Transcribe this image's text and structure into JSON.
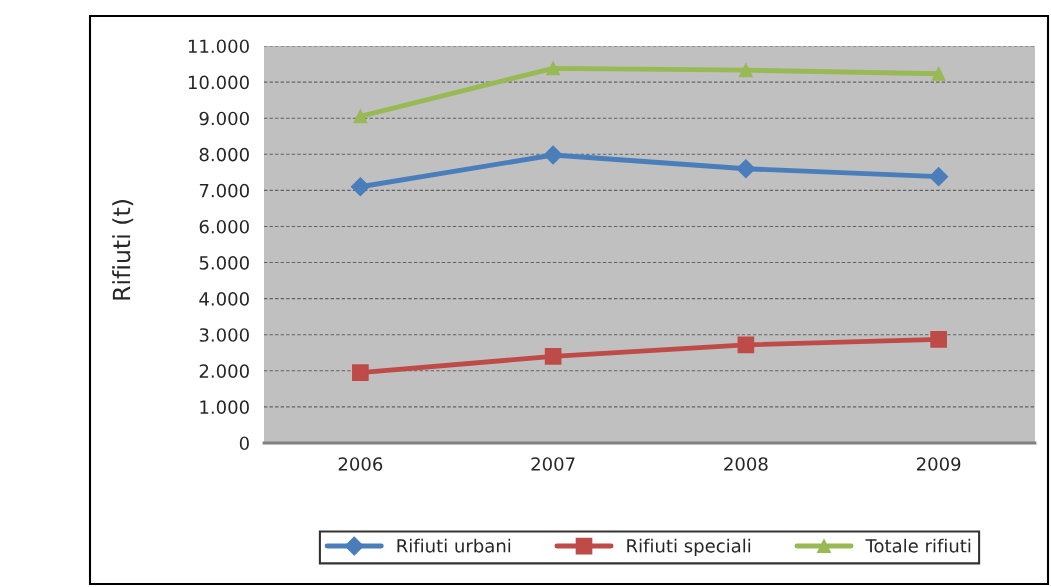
{
  "chart_data": {
    "type": "line",
    "ylabel": "Rifiuti (t)",
    "categories": [
      "2006",
      "2007",
      "2008",
      "2009"
    ],
    "series": [
      {
        "name": "Rifiuti urbani",
        "color": "#4a7ebb",
        "marker": "diamond",
        "values": [
          7100,
          7980,
          7600,
          7380
        ]
      },
      {
        "name": "Rifiuti speciali",
        "color": "#be4b48",
        "marker": "square",
        "values": [
          1950,
          2400,
          2720,
          2870
        ]
      },
      {
        "name": "Totale rifiuti",
        "color": "#98b954",
        "marker": "triangle",
        "values": [
          9050,
          10380,
          10330,
          10230
        ]
      }
    ],
    "ylim": [
      0,
      11000
    ],
    "yticks": [
      0,
      {
        "value": 1000,
        "label": "1.000"
      },
      {
        "value": 2000,
        "label": "2.000"
      },
      {
        "value": 3000,
        "label": "3.000"
      },
      {
        "value": 4000,
        "label": "4.000"
      },
      {
        "value": 5000,
        "label": "5.000"
      },
      {
        "value": 6000,
        "label": "6.000"
      },
      {
        "value": 7000,
        "label": "7.000"
      },
      {
        "value": 8000,
        "label": "8.000"
      },
      {
        "value": 9000,
        "label": "9.000"
      },
      {
        "value": 10000,
        "label": "10.000"
      },
      {
        "value": 11000,
        "label": "11.000"
      }
    ],
    "grid": "y",
    "legend": "bottom",
    "line_style": "solid"
  }
}
